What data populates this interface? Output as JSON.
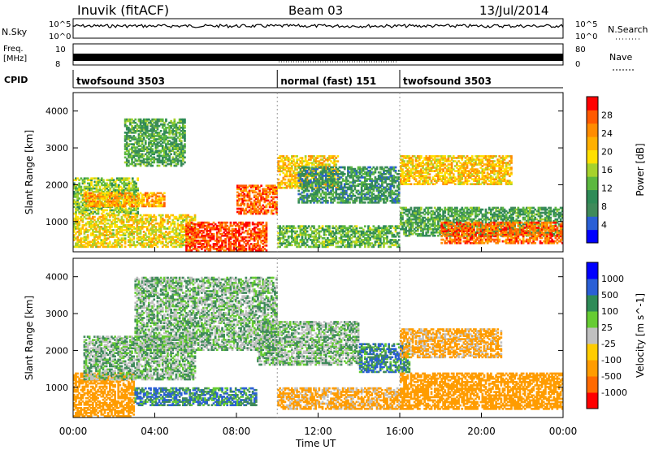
{
  "header": {
    "station": "Inuvik (fitACF)",
    "beam": "Beam 03",
    "date": "13/Jul/2014"
  },
  "panels": {
    "nsky": {
      "label": "N.Sky",
      "tick_top": "10^5",
      "tick_bottom": "10^0",
      "right_label": "N.Search",
      "right_tick_top": "10^5",
      "right_tick_bottom": "10^0"
    },
    "freq": {
      "label_line1": "Freq.",
      "label_line2": "[MHz]",
      "tick_top": "10",
      "tick_bottom": "8",
      "right_label": "Nave",
      "right_tick_top": "80",
      "right_tick_bottom": "0"
    },
    "cpid": {
      "label": "CPID",
      "segments": [
        {
          "name": "twofsound 3503",
          "start_hour": 0,
          "end_hour": 10
        },
        {
          "name": "normal (fast) 151",
          "start_hour": 10,
          "end_hour": 16
        },
        {
          "name": "twofsound 3503",
          "start_hour": 16,
          "end_hour": 24
        }
      ]
    }
  },
  "colors": {
    "power_scale": [
      "#0000ff",
      "#2a5fd6",
      "#3f8a5a",
      "#2e8b57",
      "#5cb840",
      "#a6d22c",
      "#ffe000",
      "#ffb000",
      "#ff8c00",
      "#ff5a00",
      "#ff0000"
    ],
    "velocity_scale": [
      "#ff0000",
      "#ff6a00",
      "#ff9c00",
      "#ffcc00",
      "#c0c0c0",
      "#c0c0c0",
      "#66cc33",
      "#2e8b57",
      "#3f8a5a",
      "#2a5fd6",
      "#0000ff"
    ]
  },
  "chart_data": [
    {
      "type": "heatmap",
      "title": "",
      "xlabel": "Time UT",
      "ylabel": "Slant Range [km]",
      "xlim": [
        0,
        24
      ],
      "ylim": [
        180,
        4500
      ],
      "x_ticks": [
        "00:00",
        "04:00",
        "08:00",
        "12:00",
        "16:00",
        "20:00",
        "00:00"
      ],
      "y_ticks": [
        1000,
        2000,
        3000,
        4000
      ],
      "colorbar": {
        "label": "Power [dB]",
        "ticks": [
          4,
          8,
          12,
          16,
          20,
          24,
          28
        ],
        "range": [
          0,
          30
        ]
      },
      "regions": [
        {
          "t0": 0.0,
          "t1": 3.2,
          "r0": 1200,
          "r1": 2200,
          "value": 14
        },
        {
          "t0": 0.5,
          "t1": 4.5,
          "r0": 1400,
          "r1": 1800,
          "value": 22
        },
        {
          "t0": 2.5,
          "t1": 5.5,
          "r0": 2500,
          "r1": 3800,
          "value": 10
        },
        {
          "t0": 0.0,
          "t1": 6.0,
          "r0": 300,
          "r1": 1200,
          "value": 18
        },
        {
          "t0": 5.5,
          "t1": 9.5,
          "r0": 200,
          "r1": 1000,
          "value": 28
        },
        {
          "t0": 8.0,
          "t1": 10.0,
          "r0": 1200,
          "r1": 2000,
          "value": 26
        },
        {
          "t0": 10.0,
          "t1": 13.0,
          "r0": 1900,
          "r1": 2800,
          "value": 20
        },
        {
          "t0": 11.0,
          "t1": 16.0,
          "r0": 1500,
          "r1": 2500,
          "value": 8
        },
        {
          "t0": 10.0,
          "t1": 16.0,
          "r0": 300,
          "r1": 900,
          "value": 12
        },
        {
          "t0": 16.0,
          "t1": 21.5,
          "r0": 2000,
          "r1": 2800,
          "value": 20
        },
        {
          "t0": 16.0,
          "t1": 24.0,
          "r0": 600,
          "r1": 1400,
          "value": 10
        },
        {
          "t0": 18.0,
          "t1": 24.0,
          "r0": 400,
          "r1": 1000,
          "value": 26
        }
      ]
    },
    {
      "type": "heatmap",
      "title": "",
      "xlabel": "Time UT",
      "ylabel": "Slant Range [km]",
      "xlim": [
        0,
        24
      ],
      "ylim": [
        180,
        4500
      ],
      "x_ticks": [
        "00:00",
        "04:00",
        "08:00",
        "12:00",
        "16:00",
        "20:00",
        "00:00"
      ],
      "y_ticks": [
        1000,
        2000,
        3000,
        4000
      ],
      "colorbar": {
        "label": "Velocity [m s^-1]",
        "ticks": [
          "1000",
          "500",
          "100",
          "25",
          "-25",
          "-100",
          "-500",
          "-1000"
        ]
      },
      "regions": [
        {
          "t0": 0.0,
          "t1": 3.0,
          "r0": 200,
          "r1": 1400,
          "value": -300
        },
        {
          "t0": 0.5,
          "t1": 6.0,
          "r0": 1200,
          "r1": 2400,
          "value": 0
        },
        {
          "t0": 3.0,
          "t1": 10.0,
          "r0": 2000,
          "r1": 4000,
          "value": 0
        },
        {
          "t0": 3.0,
          "t1": 9.0,
          "r0": 500,
          "r1": 1000,
          "value": 80
        },
        {
          "t0": 9.0,
          "t1": 14.0,
          "r0": 1600,
          "r1": 2800,
          "value": 0
        },
        {
          "t0": 10.0,
          "t1": 16.0,
          "r0": 400,
          "r1": 1000,
          "value": -150
        },
        {
          "t0": 14.0,
          "t1": 16.5,
          "r0": 1400,
          "r1": 2200,
          "value": 80
        },
        {
          "t0": 16.0,
          "t1": 21.0,
          "r0": 1800,
          "r1": 2600,
          "value": -150
        },
        {
          "t0": 16.0,
          "t1": 24.0,
          "r0": 400,
          "r1": 1400,
          "value": -300
        }
      ]
    }
  ]
}
